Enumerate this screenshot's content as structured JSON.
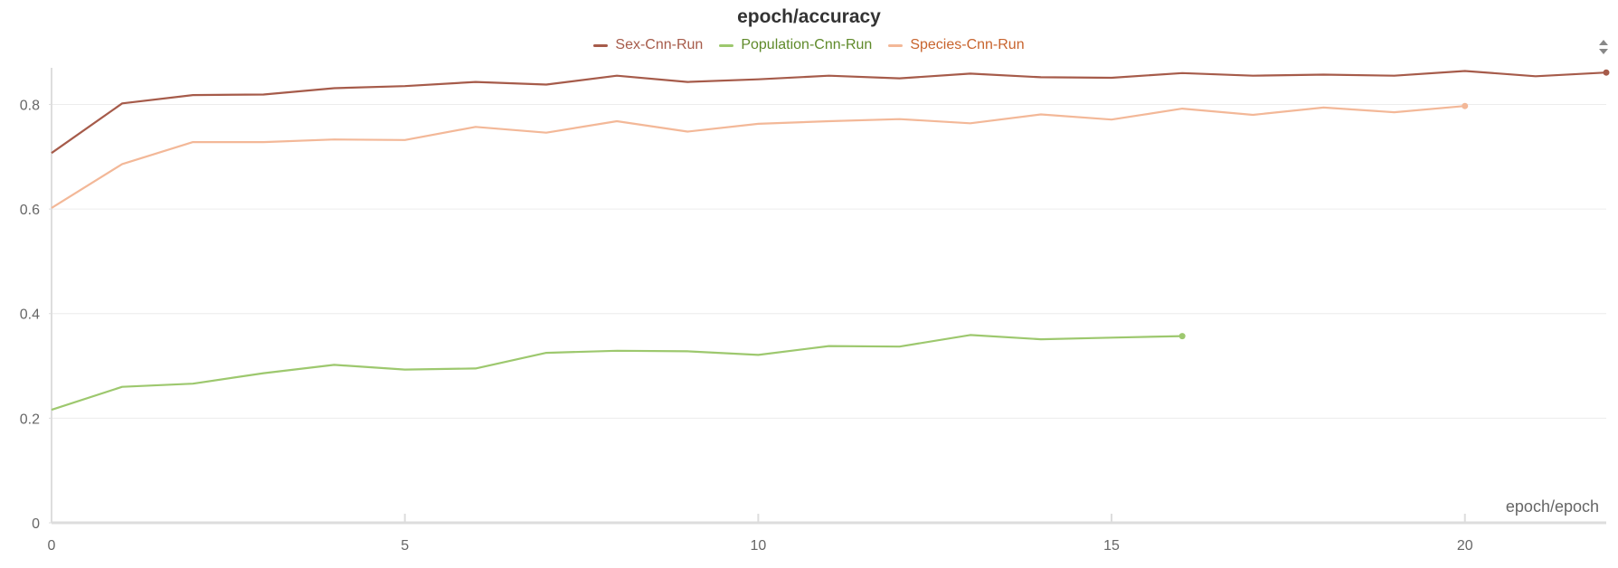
{
  "chart_data": {
    "type": "line",
    "title": "epoch/accuracy",
    "xlabel": "epoch/epoch",
    "ylabel": "",
    "xlim": [
      0,
      22
    ],
    "ylim": [
      0,
      0.87
    ],
    "xticks": [
      0,
      5,
      10,
      15,
      20
    ],
    "yticks": [
      0,
      0.2,
      0.4,
      0.6,
      0.8
    ],
    "grid": true,
    "legend_position": "top-center",
    "series": [
      {
        "name": "Sex-Cnn-Run",
        "color": "#a65b4a",
        "label_color": "#a65b4a",
        "x": [
          0,
          1,
          2,
          3,
          4,
          5,
          6,
          7,
          8,
          9,
          10,
          11,
          12,
          13,
          14,
          15,
          16,
          17,
          18,
          19,
          20,
          21,
          22
        ],
        "values": [
          0.707,
          0.802,
          0.818,
          0.819,
          0.831,
          0.835,
          0.843,
          0.838,
          0.855,
          0.843,
          0.848,
          0.855,
          0.85,
          0.859,
          0.852,
          0.851,
          0.86,
          0.855,
          0.857,
          0.855,
          0.864,
          0.854,
          0.861
        ]
      },
      {
        "name": "Population-Cnn-Run",
        "color": "#9dc86e",
        "label_color": "#5f8a2a",
        "x": [
          0,
          1,
          2,
          3,
          4,
          5,
          6,
          7,
          8,
          9,
          10,
          11,
          12,
          13,
          14,
          15,
          16
        ],
        "values": [
          0.216,
          0.26,
          0.266,
          0.286,
          0.302,
          0.293,
          0.295,
          0.325,
          0.329,
          0.328,
          0.321,
          0.338,
          0.337,
          0.359,
          0.351,
          0.354,
          0.357
        ]
      },
      {
        "name": "Species-Cnn-Run",
        "color": "#f3b898",
        "label_color": "#c8642e",
        "x": [
          0,
          1,
          2,
          3,
          4,
          5,
          6,
          7,
          8,
          9,
          10,
          11,
          12,
          13,
          14,
          15,
          16,
          17,
          18,
          19,
          20
        ],
        "values": [
          0.602,
          0.686,
          0.728,
          0.728,
          0.733,
          0.732,
          0.757,
          0.746,
          0.768,
          0.748,
          0.763,
          0.768,
          0.772,
          0.764,
          0.781,
          0.771,
          0.792,
          0.78,
          0.794,
          0.785,
          0.797
        ]
      }
    ]
  }
}
